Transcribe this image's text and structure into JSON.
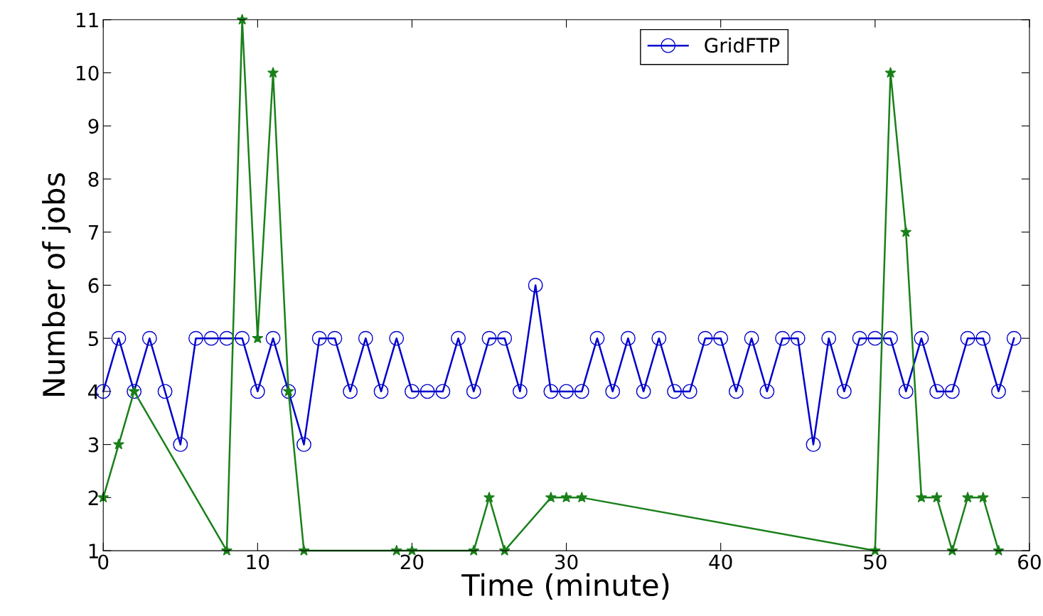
{
  "chart_data": {
    "type": "line",
    "xlabel": "Time (minute)",
    "ylabel": "Number of jobs",
    "xlim": [
      0,
      60
    ],
    "xticks": [
      0,
      10,
      20,
      30,
      40,
      50,
      60
    ],
    "ylim": [
      1,
      11
    ],
    "yticks": [
      1,
      2,
      3,
      4,
      5,
      6,
      7,
      8,
      9,
      10,
      11
    ],
    "grid": false,
    "legend": "top right",
    "series": [
      {
        "name": "GridFTP",
        "color": "#0000cc",
        "marker": "circle",
        "x": [
          0,
          1,
          2,
          3,
          4,
          5,
          6,
          7,
          8,
          9,
          10,
          11,
          12,
          13,
          14,
          15,
          16,
          17,
          18,
          19,
          20,
          21,
          22,
          23,
          24,
          25,
          26,
          27,
          28,
          29,
          30,
          31,
          32,
          33,
          34,
          35,
          36,
          37,
          38,
          39,
          40,
          41,
          42,
          43,
          44,
          45,
          46,
          47,
          48,
          49,
          50,
          51,
          52,
          53,
          54,
          55,
          56,
          57,
          58,
          59
        ],
        "values": [
          4,
          5,
          4,
          5,
          4,
          3,
          5,
          5,
          5,
          5,
          4,
          5,
          4,
          3,
          5,
          5,
          4,
          5,
          4,
          5,
          4,
          4,
          4,
          5,
          4,
          5,
          5,
          4,
          6,
          4,
          4,
          4,
          5,
          4,
          5,
          4,
          5,
          4,
          4,
          5,
          5,
          4,
          5,
          4,
          5,
          5,
          3,
          5,
          4,
          5,
          5,
          5,
          4,
          5,
          4,
          4,
          5,
          5,
          4,
          5
        ]
      },
      {
        "color": "#1a801a",
        "marker": "star",
        "x": [
          0,
          1,
          2,
          8,
          9,
          10,
          11,
          12,
          13,
          19,
          20,
          24,
          25,
          26,
          29,
          30,
          31,
          50,
          51,
          52,
          53,
          54,
          55,
          56,
          57,
          58
        ],
        "values": [
          2,
          3,
          4,
          1,
          11,
          5,
          10,
          4,
          1,
          1,
          1,
          1,
          2,
          1,
          2,
          2,
          2,
          1,
          10,
          7,
          2,
          2,
          1,
          2,
          2,
          1
        ]
      }
    ]
  }
}
